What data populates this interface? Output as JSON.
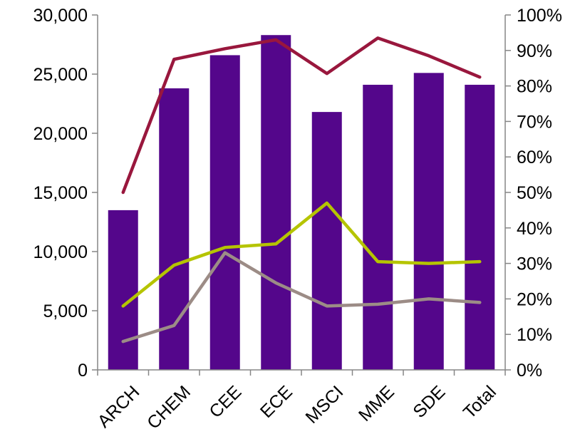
{
  "chart_data": {
    "type": "bar",
    "categories": [
      "ARCH",
      "CHEM",
      "CEE",
      "ECE",
      "MSCI",
      "MME",
      "SDE",
      "Total"
    ],
    "left_axis": {
      "ylim": [
        0,
        30000
      ],
      "ticks": [
        0,
        5000,
        10000,
        15000,
        20000,
        25000,
        30000
      ],
      "tick_labels": [
        "0",
        "5,000",
        "10,000",
        "15,000",
        "20,000",
        "25,000",
        "30,000"
      ]
    },
    "right_axis": {
      "ylim": [
        0,
        100
      ],
      "ticks": [
        0,
        10,
        20,
        30,
        40,
        50,
        60,
        70,
        80,
        90,
        100
      ],
      "tick_labels": [
        "0%",
        "10%",
        "20%",
        "30%",
        "40%",
        "50%",
        "60%",
        "70%",
        "80%",
        "90%",
        "100%"
      ]
    },
    "series": [
      {
        "type": "bar",
        "axis": "left",
        "color": "#54068b",
        "values": [
          13500,
          23800,
          26600,
          28300,
          21800,
          24100,
          25100,
          24100
        ]
      },
      {
        "type": "line",
        "axis": "right",
        "color": "#99173d",
        "values": [
          50,
          87.5,
          90.5,
          93,
          83.5,
          93.5,
          88.5,
          82.5
        ]
      },
      {
        "type": "line",
        "axis": "right",
        "color": "#b5c400",
        "values": [
          18,
          29.5,
          34.5,
          35.5,
          47,
          30.5,
          30,
          30.5
        ]
      },
      {
        "type": "line",
        "axis": "right",
        "color": "#9c8c86",
        "values": [
          8,
          12.5,
          33,
          24.5,
          18,
          18.5,
          20,
          19
        ]
      }
    ],
    "grid": false,
    "title": "",
    "xlabel": "",
    "ylabel": ""
  }
}
